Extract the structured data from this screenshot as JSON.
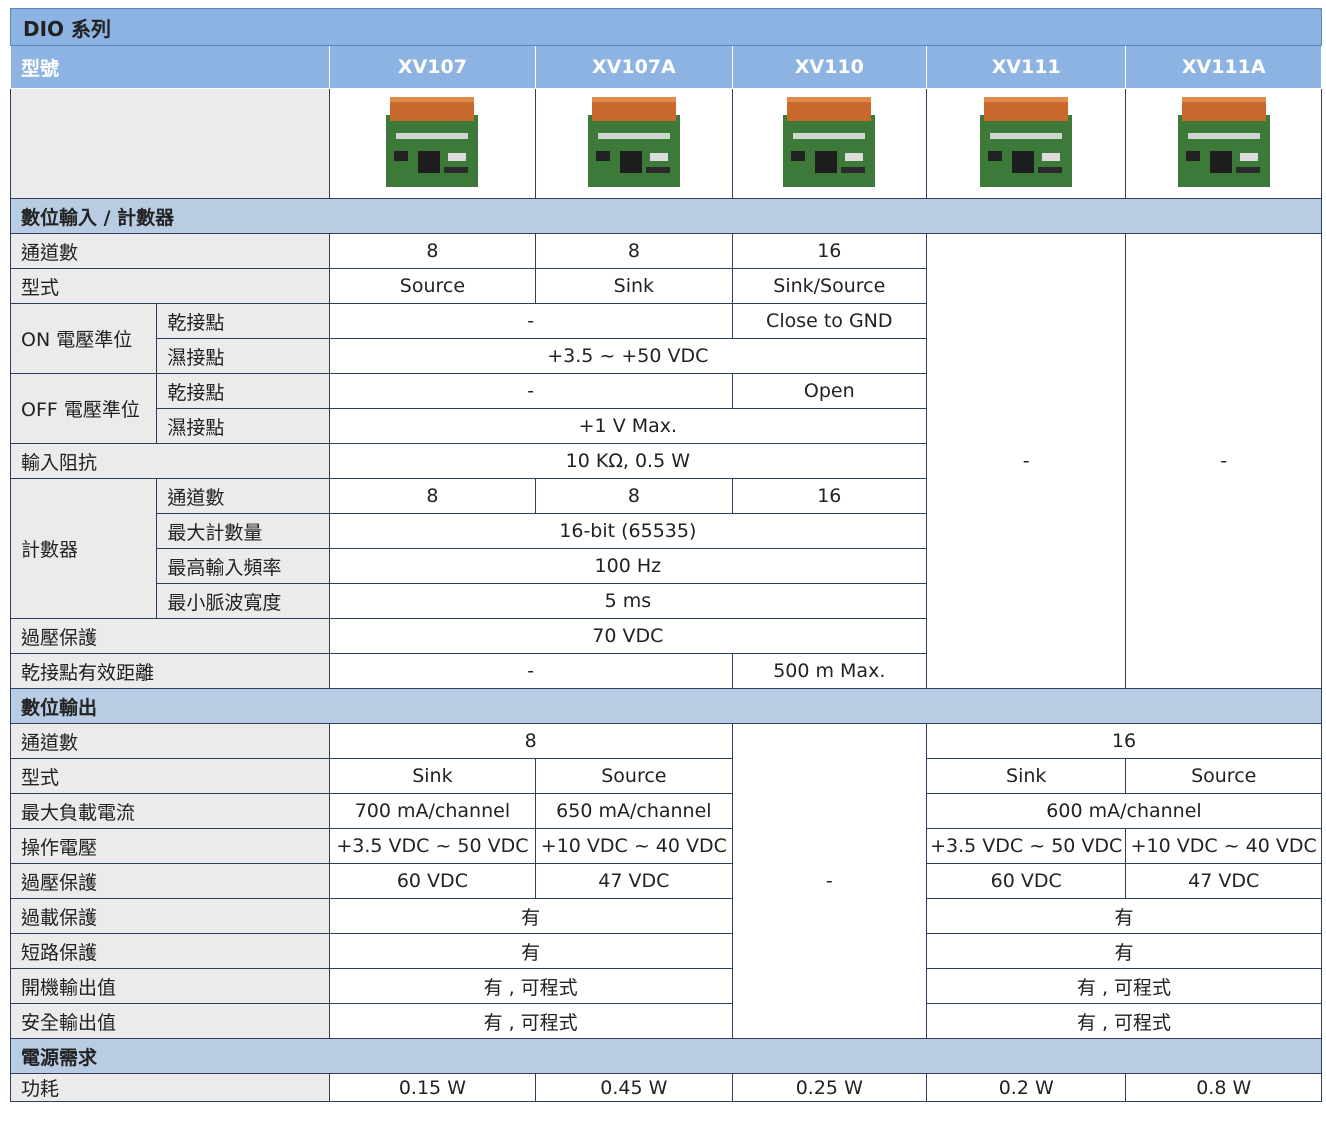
{
  "title": "DIO 系列",
  "header": {
    "label": "型號",
    "models": [
      "XV107",
      "XV107A",
      "XV110",
      "XV111",
      "XV111A"
    ]
  },
  "sections": [
    {
      "title": "數位輸入 / 計數器",
      "rows": [
        {
          "label": "通道數",
          "cells": [
            "8",
            "8",
            "16",
            "-",
            "-"
          ]
        },
        {
          "label": "型式",
          "cells": [
            "Source",
            "Sink",
            "Sink/Source"
          ]
        },
        {
          "label": "ON 電壓準位",
          "rows": [
            {
              "label": "乾接點",
              "cells": [
                "-",
                "Close to GND"
              ]
            },
            {
              "label": "濕接點",
              "cells": [
                "+3.5 ~ +50 VDC"
              ]
            }
          ]
        },
        {
          "label": "OFF 電壓準位",
          "rows": [
            {
              "label": "乾接點",
              "cells": [
                "-",
                "Open"
              ]
            },
            {
              "label": "濕接點",
              "cells": [
                "+1 V Max."
              ]
            }
          ]
        },
        {
          "label": "輸入阻抗",
          "cells": [
            "10 KΩ, 0.5 W"
          ]
        },
        {
          "label": "計數器",
          "rows": [
            {
              "label": "通道數",
              "cells": [
                "8",
                "8",
                "16"
              ]
            },
            {
              "label": "最大計數量",
              "cells": [
                "16-bit (65535)"
              ]
            },
            {
              "label": "最高輸入頻率",
              "cells": [
                "100 Hz"
              ]
            },
            {
              "label": "最小脈波寬度",
              "cells": [
                "5 ms"
              ]
            }
          ]
        },
        {
          "label": "過壓保護",
          "cells": [
            "70 VDC"
          ]
        },
        {
          "label": "乾接點有效距離",
          "cells": [
            "-",
            "500 m Max."
          ]
        }
      ]
    },
    {
      "title": "數位輸出",
      "rows": [
        {
          "label": "通道數",
          "cells": [
            "8",
            "-",
            "16"
          ]
        },
        {
          "label": "型式",
          "cells": [
            "Sink",
            "Source",
            "Sink",
            "Source"
          ]
        },
        {
          "label": "最大負載電流",
          "cells": [
            "700 mA/channel",
            "650 mA/channel",
            "600 mA/channel"
          ]
        },
        {
          "label": "操作電壓",
          "cells": [
            "+3.5 VDC ~ 50 VDC",
            "+10 VDC ~ 40 VDC",
            "+3.5 VDC ~ 50 VDC",
            "+10 VDC ~ 40 VDC"
          ]
        },
        {
          "label": "過壓保護",
          "cells": [
            "60 VDC",
            "47 VDC",
            "60 VDC",
            "47 VDC"
          ]
        },
        {
          "label": "過載保護",
          "cells": [
            "有",
            "有"
          ]
        },
        {
          "label": "短路保護",
          "cells": [
            "有",
            "有"
          ]
        },
        {
          "label": "開機輸出值",
          "cells": [
            "有 , 可程式",
            "有 , 可程式"
          ]
        },
        {
          "label": "安全輸出值",
          "cells": [
            "有 , 可程式",
            "有 , 可程式"
          ]
        }
      ]
    },
    {
      "title": "電源需求",
      "rows": [
        {
          "label": "功耗",
          "cells": [
            "0.15 W",
            "0.45 W",
            "0.25 W",
            "0.2 W",
            "0.8 W"
          ]
        }
      ]
    }
  ]
}
